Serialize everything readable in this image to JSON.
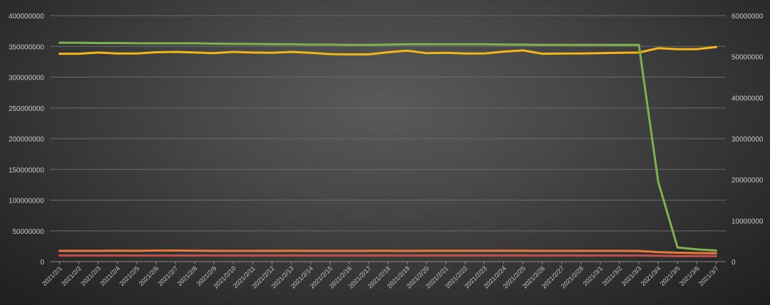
{
  "chart_data": {
    "type": "line",
    "title": "...",
    "categories": [
      "2021/2/1",
      "2021/2/2",
      "2021/2/3",
      "2021/2/4",
      "2021/2/5",
      "2021/2/6",
      "2021/2/7",
      "2021/2/8",
      "2021/2/9",
      "2021/2/10",
      "2021/2/11",
      "2021/2/12",
      "2021/2/13",
      "2021/2/14",
      "2021/2/15",
      "2021/2/16",
      "2021/2/17",
      "2021/2/18",
      "2021/2/19",
      "2021/2/20",
      "2021/2/21",
      "2021/2/22",
      "2021/2/23",
      "2021/2/24",
      "2021/2/25",
      "2021/2/26",
      "2021/2/27",
      "2021/2/28",
      "2021/3/1",
      "2021/3/2",
      "2021/3/3",
      "2021/3/4",
      "2021/3/5",
      "2021/3/6",
      "2021/3/7"
    ],
    "y_left": {
      "min": 0,
      "max": 400000000,
      "ticks": [
        "0",
        "50000000",
        "100000000",
        "150000000",
        "200000000",
        "250000000",
        "300000000",
        "350000000",
        "400000000"
      ]
    },
    "y_right": {
      "min": 0,
      "max": 60000000,
      "ticks": [
        "0",
        "10000000",
        "20000000",
        "30000000",
        "40000000",
        "50000000",
        "60000000"
      ]
    },
    "grid": true,
    "series": [
      {
        "color": "#7fb24c",
        "axis": "left",
        "values": [
          356000000,
          356000000,
          355500000,
          355500000,
          355000000,
          355000000,
          355000000,
          355000000,
          354500000,
          354000000,
          354000000,
          353500000,
          353500000,
          353000000,
          353000000,
          352500000,
          352500000,
          353000000,
          353500000,
          353500000,
          353500000,
          353500000,
          353500000,
          353000000,
          353000000,
          352500000,
          352500000,
          352500000,
          352500000,
          352500000,
          352500000,
          130000000,
          23000000,
          20000000,
          18000000
        ]
      },
      {
        "color": "#f2b619",
        "axis": "left",
        "values": [
          338000000,
          338000000,
          340000000,
          338500000,
          338500000,
          340500000,
          341000000,
          340000000,
          339000000,
          341000000,
          340000000,
          339500000,
          341000000,
          339500000,
          337500000,
          337000000,
          337000000,
          340500000,
          343000000,
          339000000,
          339500000,
          338500000,
          338500000,
          341500000,
          343500000,
          338000000,
          338500000,
          338500000,
          339000000,
          339500000,
          340000000,
          347000000,
          345500000,
          345500000,
          349000000
        ]
      },
      {
        "color": "#e8793a",
        "axis": "left",
        "values": [
          17500000,
          17500000,
          17500000,
          17800000,
          17500000,
          18000000,
          18000000,
          17800000,
          17500000,
          17500000,
          17500000,
          17500000,
          17600000,
          17500000,
          17500000,
          17500000,
          17600000,
          17600000,
          17500000,
          17600000,
          17700000,
          17700000,
          17700000,
          17700000,
          17600000,
          17500000,
          17500000,
          17500000,
          17500000,
          17500000,
          17300000,
          15500000,
          14500000,
          14000000,
          13500000
        ]
      },
      {
        "color": "#c0504d",
        "axis": "left",
        "values": [
          10000000,
          10000000,
          10000000,
          10000000,
          10000000,
          10000000,
          10000000,
          10000000,
          10000000,
          10000000,
          10000000,
          10000000,
          10000000,
          10000000,
          10000000,
          10000000,
          10000000,
          10000000,
          10000000,
          10000000,
          10000000,
          10000000,
          10000000,
          10000000,
          10000000,
          10000000,
          10000000,
          10000000,
          10000000,
          10000000,
          10000000,
          9500000,
          9000000,
          9000000,
          9000000
        ]
      }
    ]
  }
}
